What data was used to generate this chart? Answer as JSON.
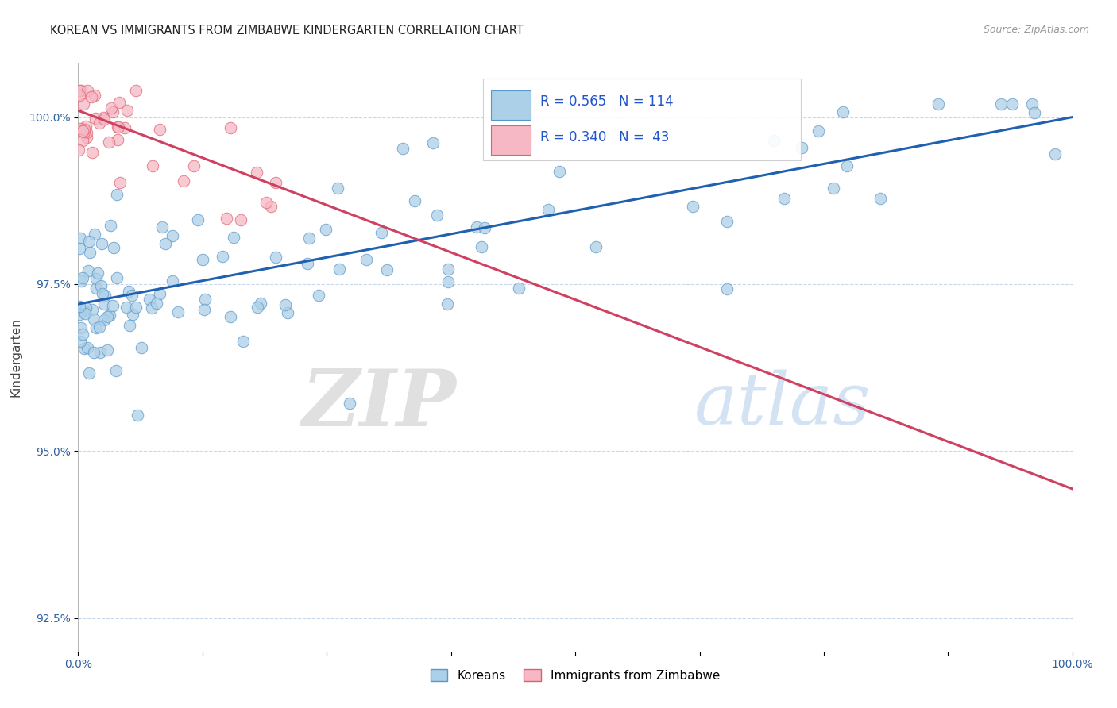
{
  "title": "KOREAN VS IMMIGRANTS FROM ZIMBABWE KINDERGARTEN CORRELATION CHART",
  "source": "Source: ZipAtlas.com",
  "ylabel": "Kindergarten",
  "xlim": [
    0.0,
    100.0
  ],
  "ylim": [
    92.0,
    100.8
  ],
  "yticks": [
    92.5,
    95.0,
    97.5,
    100.0
  ],
  "ytick_labels": [
    "92.5%",
    "95.0%",
    "97.5%",
    "100.0%"
  ],
  "xtick_labels": [
    "0.0%",
    "",
    "",
    "",
    "",
    "",
    "",
    "",
    "100.0%"
  ],
  "blue_R": 0.565,
  "blue_N": 114,
  "pink_R": 0.34,
  "pink_N": 43,
  "blue_color": "#acd0e8",
  "pink_color": "#f5b8c4",
  "blue_edge_color": "#5a96c8",
  "pink_edge_color": "#e06070",
  "blue_line_color": "#2060b0",
  "pink_line_color": "#d04060",
  "legend_blue_label": "Koreans",
  "legend_pink_label": "Immigrants from Zimbabwe",
  "watermark_zip": "ZIP",
  "watermark_atlas": "atlas",
  "blue_line_x0": 0,
  "blue_line_y0": 97.2,
  "blue_line_x1": 100,
  "blue_line_y1": 100.0,
  "pink_line_x0": 0,
  "pink_line_y0": 100.1,
  "pink_line_x1": 30,
  "pink_line_y1": 98.4
}
